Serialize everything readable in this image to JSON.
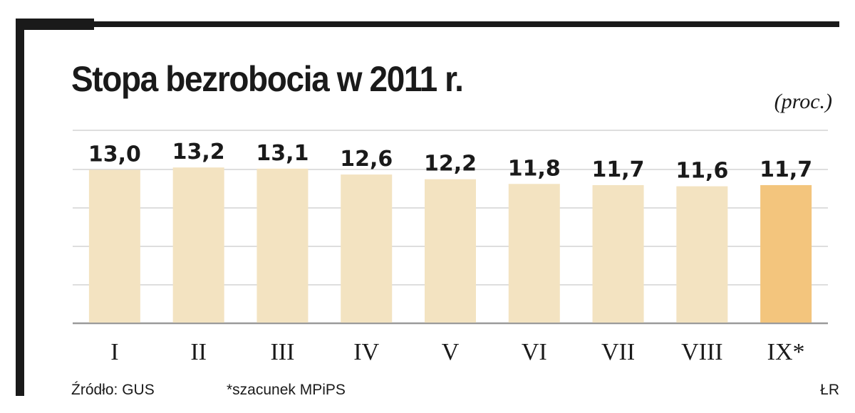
{
  "header": {
    "title": "Stopa bezrobocia w 2011 r.",
    "unit": "(proc.)"
  },
  "footer": {
    "source": "Źródło: GUS",
    "note": "*szacunek MPiPS",
    "author": "ŁR"
  },
  "colors": {
    "bar": "#f3e3c1",
    "bar_highlight": "#f3c57d",
    "grid": "#d4d4d4",
    "frame": "#1a1a1a"
  },
  "chart_data": {
    "type": "bar",
    "categories": [
      "I",
      "II",
      "III",
      "IV",
      "V",
      "VI",
      "VII",
      "VIII",
      "IX*"
    ],
    "values": [
      13.0,
      13.2,
      13.1,
      12.6,
      12.2,
      11.8,
      11.7,
      11.6,
      11.7
    ],
    "value_labels": [
      "13,0",
      "13,2",
      "13,1",
      "12,6",
      "12,2",
      "11,8",
      "11,7",
      "11,6",
      "11,7"
    ],
    "highlight_index": 8,
    "title": "Stopa bezrobocia w 2011 r.",
    "ylabel": "(proc.)",
    "xlabel": "",
    "grid": true
  }
}
